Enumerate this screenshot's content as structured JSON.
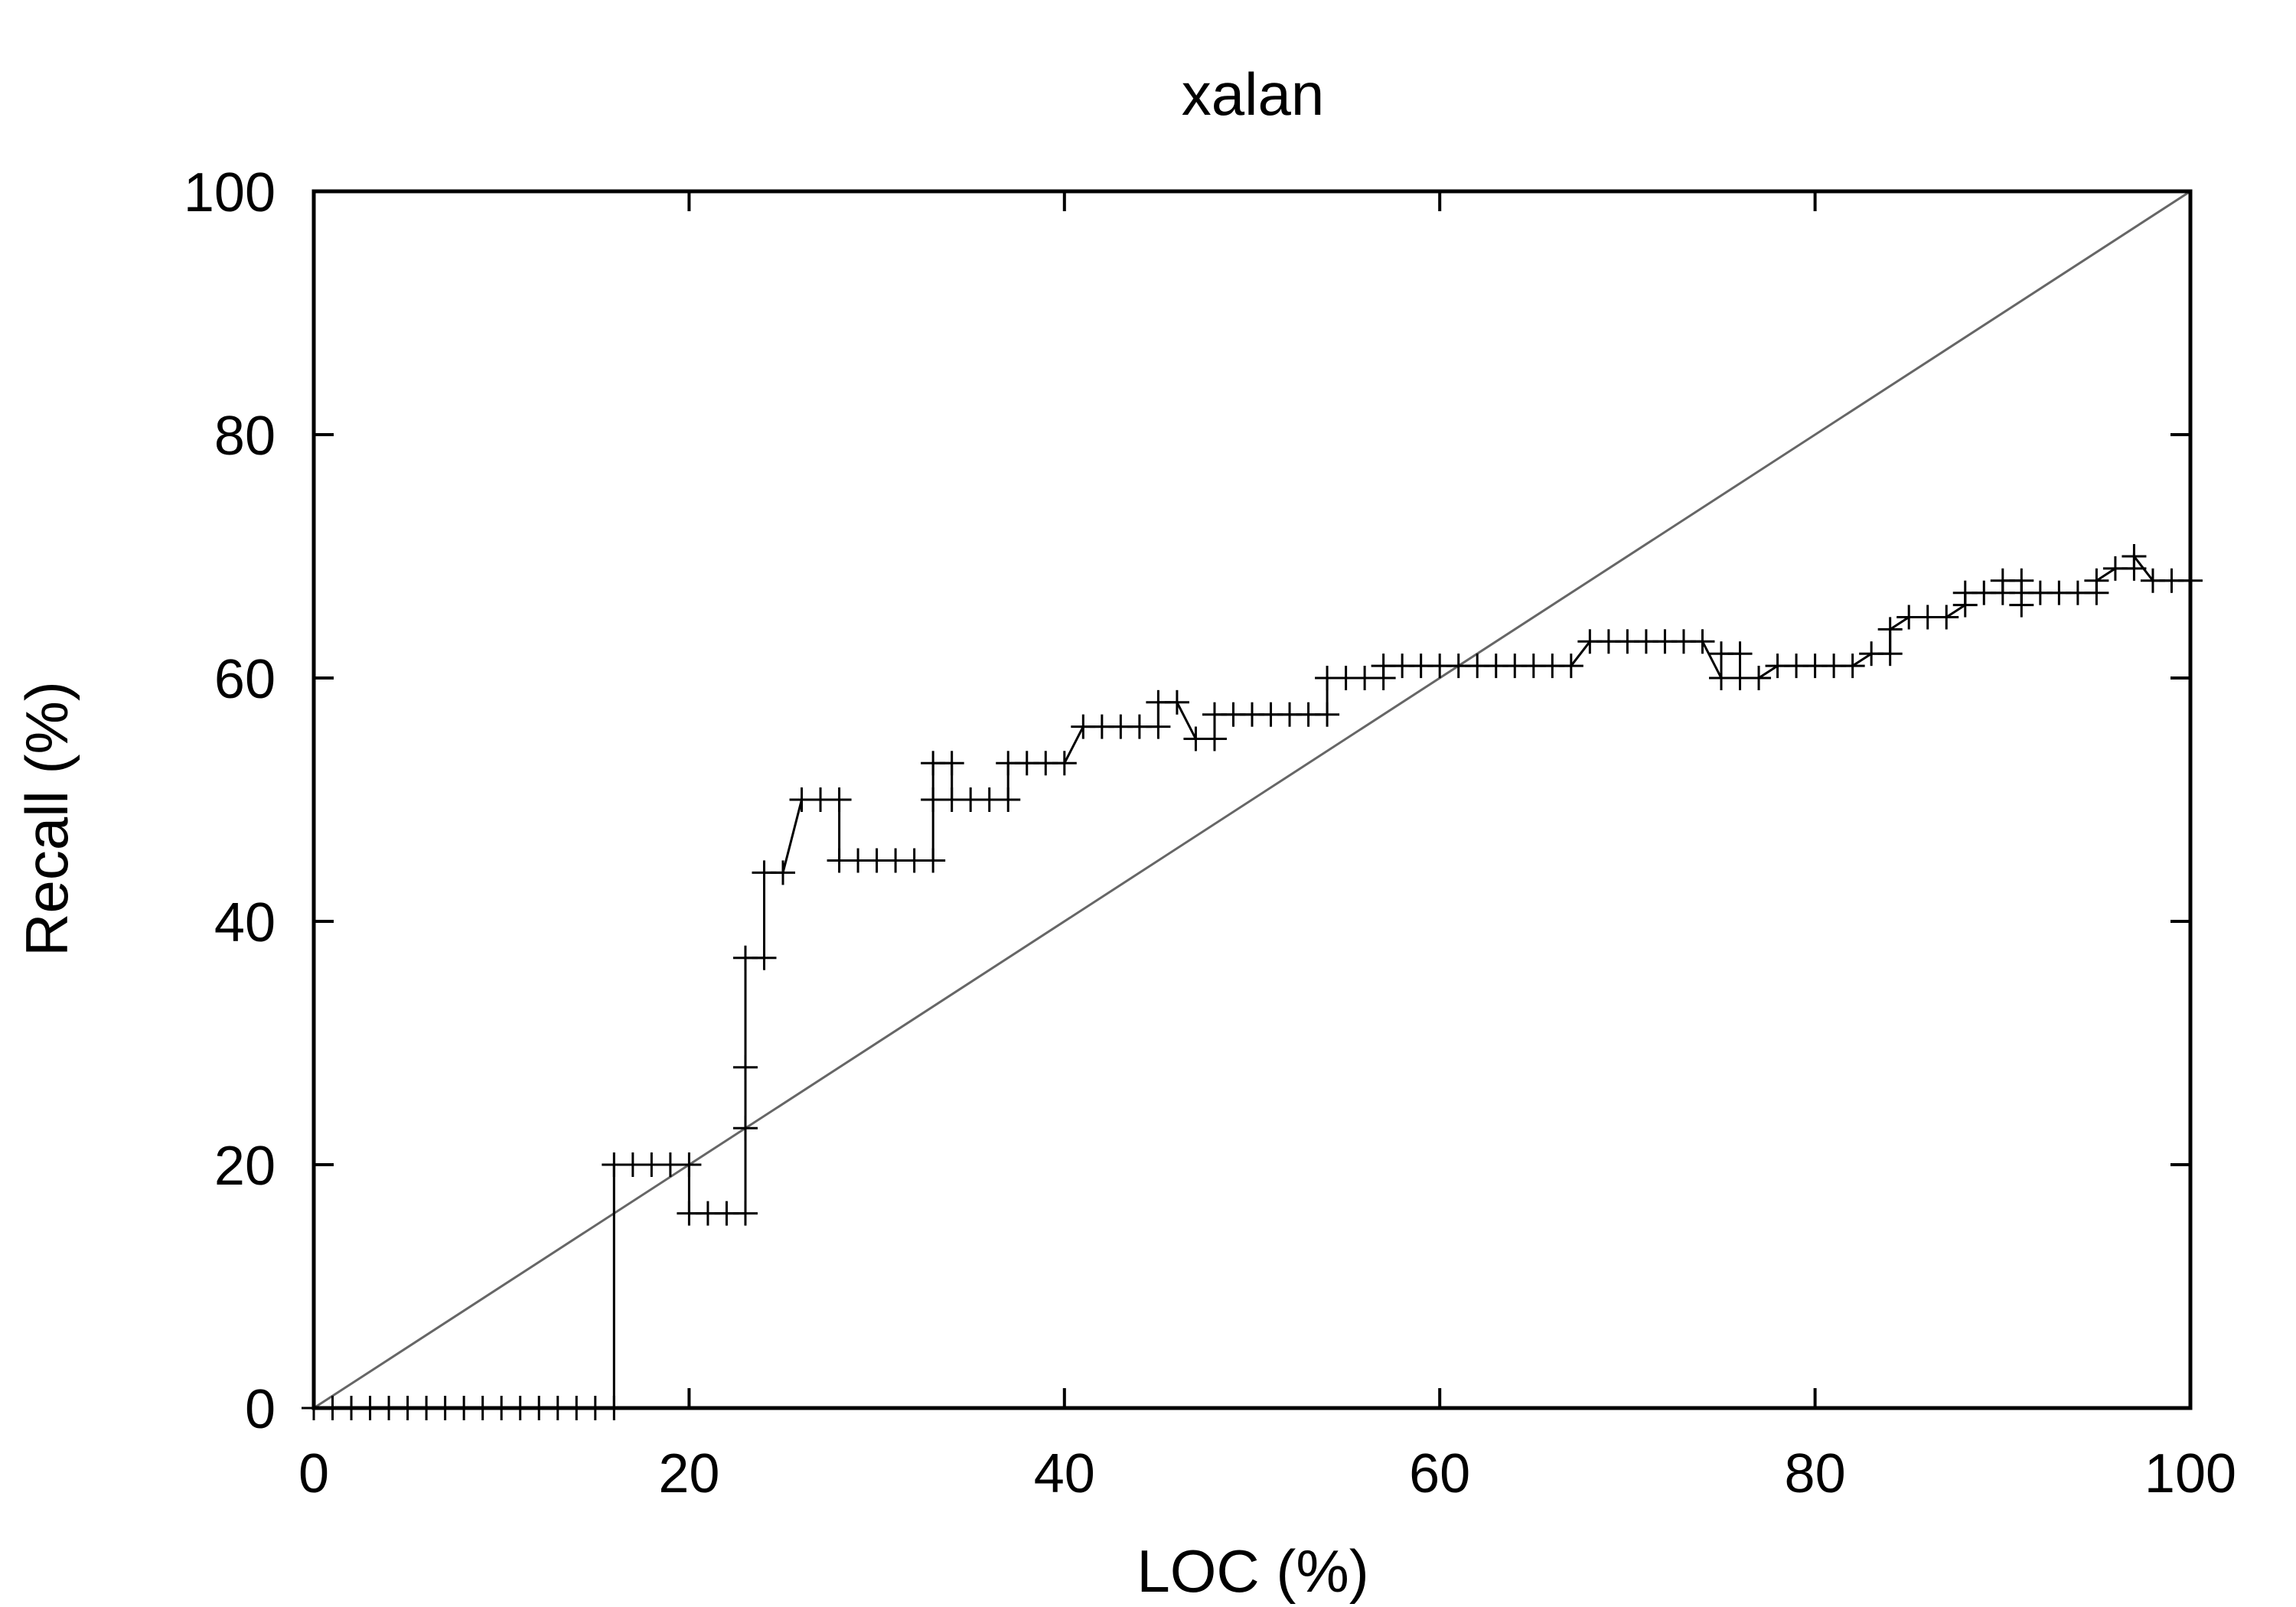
{
  "chart_data": {
    "type": "line",
    "title": "xalan",
    "xlabel": "LOC (%)",
    "ylabel": "Recall (%)",
    "xlim": [
      0,
      100
    ],
    "ylim": [
      0,
      100
    ],
    "xticks": [
      "0",
      "20",
      "40",
      "60",
      "80",
      "100"
    ],
    "yticks": [
      "0",
      "20",
      "40",
      "60",
      "80",
      "100"
    ],
    "grid": false,
    "legend": "none",
    "series": [
      {
        "style": "line-with-plus-markers",
        "color": "#000000",
        "points": [
          [
            0,
            0
          ],
          [
            1,
            0
          ],
          [
            2,
            0
          ],
          [
            3,
            0
          ],
          [
            4,
            0
          ],
          [
            5,
            0
          ],
          [
            6,
            0
          ],
          [
            7,
            0
          ],
          [
            8,
            0
          ],
          [
            9,
            0
          ],
          [
            10,
            0
          ],
          [
            11,
            0
          ],
          [
            12,
            0
          ],
          [
            13,
            0
          ],
          [
            14,
            0
          ],
          [
            15,
            0
          ],
          [
            16,
            0
          ],
          [
            16,
            20
          ],
          [
            17,
            20
          ],
          [
            18,
            20
          ],
          [
            19,
            20
          ],
          [
            20,
            20
          ],
          [
            20,
            16
          ],
          [
            21,
            16
          ],
          [
            22,
            16
          ],
          [
            23,
            16
          ],
          [
            23,
            23
          ],
          [
            23,
            28
          ],
          [
            23,
            37
          ],
          [
            24,
            37
          ],
          [
            24,
            44
          ],
          [
            25,
            44
          ],
          [
            26,
            50
          ],
          [
            27,
            50
          ],
          [
            28,
            50
          ],
          [
            28,
            45
          ],
          [
            29,
            45
          ],
          [
            30,
            45
          ],
          [
            31,
            45
          ],
          [
            32,
            45
          ],
          [
            33,
            45
          ],
          [
            33,
            50
          ],
          [
            33,
            53
          ],
          [
            34,
            53
          ],
          [
            34,
            50
          ],
          [
            35,
            50
          ],
          [
            36,
            50
          ],
          [
            37,
            50
          ],
          [
            37,
            53
          ],
          [
            38,
            53
          ],
          [
            39,
            53
          ],
          [
            40,
            53
          ],
          [
            41,
            56
          ],
          [
            42,
            56
          ],
          [
            43,
            56
          ],
          [
            44,
            56
          ],
          [
            45,
            56
          ],
          [
            45,
            58
          ],
          [
            46,
            58
          ],
          [
            47,
            55
          ],
          [
            48,
            55
          ],
          [
            48,
            57
          ],
          [
            49,
            57
          ],
          [
            50,
            57
          ],
          [
            51,
            57
          ],
          [
            52,
            57
          ],
          [
            53,
            57
          ],
          [
            54,
            57
          ],
          [
            54,
            60
          ],
          [
            55,
            60
          ],
          [
            56,
            60
          ],
          [
            57,
            60
          ],
          [
            57,
            61
          ],
          [
            58,
            61
          ],
          [
            59,
            61
          ],
          [
            60,
            61
          ],
          [
            61,
            61
          ],
          [
            62,
            61
          ],
          [
            63,
            61
          ],
          [
            64,
            61
          ],
          [
            65,
            61
          ],
          [
            66,
            61
          ],
          [
            67,
            61
          ],
          [
            68,
            63
          ],
          [
            69,
            63
          ],
          [
            70,
            63
          ],
          [
            71,
            63
          ],
          [
            72,
            63
          ],
          [
            73,
            63
          ],
          [
            74,
            63
          ],
          [
            75,
            60
          ],
          [
            75,
            62
          ],
          [
            76,
            62
          ],
          [
            76,
            60
          ],
          [
            77,
            60
          ],
          [
            78,
            61
          ],
          [
            79,
            61
          ],
          [
            80,
            61
          ],
          [
            81,
            61
          ],
          [
            82,
            61
          ],
          [
            83,
            62
          ],
          [
            84,
            62
          ],
          [
            84,
            64
          ],
          [
            85,
            65
          ],
          [
            86,
            65
          ],
          [
            87,
            65
          ],
          [
            88,
            66
          ],
          [
            88,
            67
          ],
          [
            89,
            67
          ],
          [
            90,
            67
          ],
          [
            90,
            68
          ],
          [
            91,
            68
          ],
          [
            91,
            66
          ],
          [
            91,
            67
          ],
          [
            92,
            67
          ],
          [
            93,
            67
          ],
          [
            94,
            67
          ],
          [
            95,
            67
          ],
          [
            95,
            68
          ],
          [
            96,
            69
          ],
          [
            97,
            69
          ],
          [
            97,
            70
          ],
          [
            98,
            68
          ],
          [
            99,
            68
          ],
          [
            100,
            68
          ]
        ]
      },
      {
        "style": "line",
        "color": "#666666",
        "points": [
          [
            0,
            0
          ],
          [
            100,
            100
          ]
        ]
      }
    ]
  }
}
